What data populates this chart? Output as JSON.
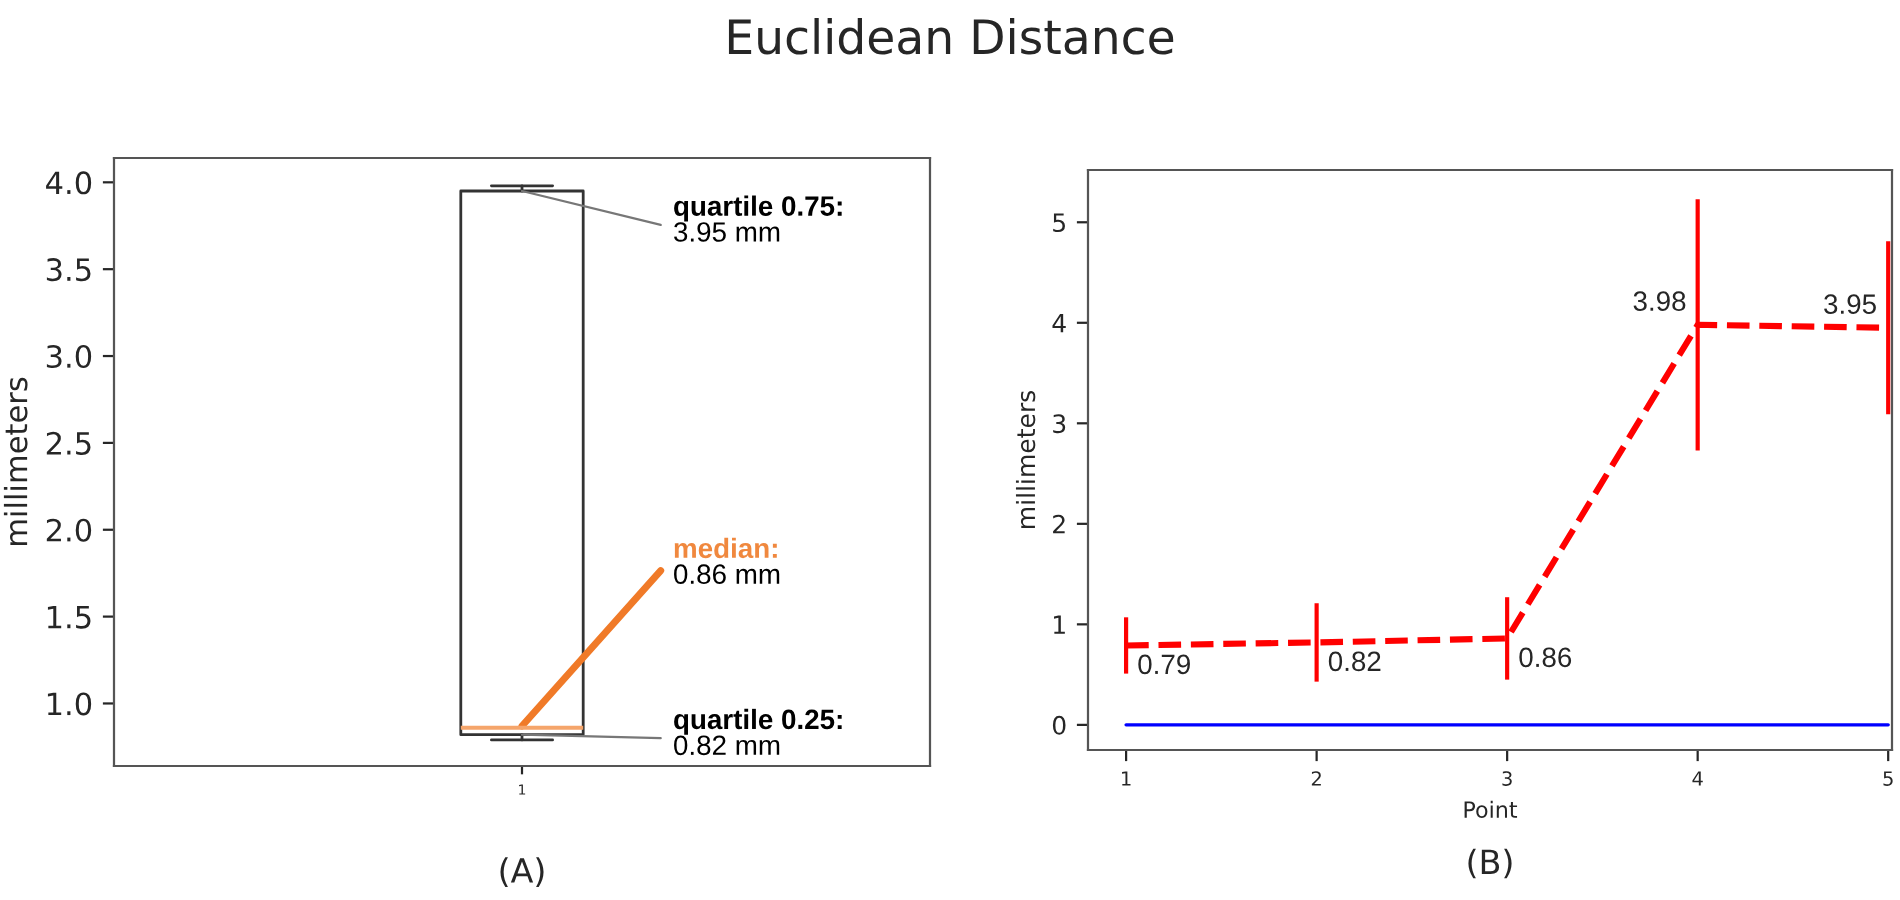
{
  "chart_data": [
    {
      "type": "box",
      "title": "Euclidean Distance",
      "ylabel": "millimeters",
      "categories": [
        "1"
      ],
      "boxes": [
        {
          "low": 0.79,
          "q1": 0.82,
          "median": 0.86,
          "q3": 3.95,
          "high": 3.98
        }
      ],
      "ylim": [
        0.64,
        4.14
      ],
      "yticks": [
        {
          "value": 1,
          "label": "1.0"
        },
        {
          "value": 1.5,
          "label": "1.5"
        },
        {
          "value": 2,
          "label": "2.0"
        },
        {
          "value": 2.5,
          "label": "2.5"
        },
        {
          "value": 3,
          "label": "3.0"
        },
        {
          "value": 3.5,
          "label": "3.5"
        },
        {
          "value": 4,
          "label": "4.0"
        }
      ],
      "grid": false,
      "legend": false,
      "annotations": [
        {
          "text": "quartile 0.75:\n3.95 mm",
          "x": "1",
          "y": 3.95
        },
        {
          "text": "median:\n0.86 mm",
          "x": "1",
          "y": 0.86
        },
        {
          "text": "quartile 0.25:\n0.82 mm",
          "x": "1",
          "y": 0.82
        },
        "(A)"
      ]
    },
    {
      "type": "line",
      "xlabel": "Point",
      "ylabel": "millimeters",
      "x": [
        1,
        2,
        3,
        4,
        5
      ],
      "series": [
        {
          "color": "#ff0000",
          "values": [
            0.79,
            0.82,
            0.86,
            3.98,
            3.95
          ],
          "errors": [
            0.28,
            0.39,
            0.41,
            1.25,
            0.86
          ],
          "value_labels": [
            "0.79",
            "0.82",
            "0.86",
            "3.98",
            "3.95"
          ],
          "line_style": "dashed"
        },
        {
          "color": "#0000ff",
          "values": [
            0,
            0,
            0,
            0,
            0
          ],
          "line_style": "solid"
        }
      ],
      "xlim": [
        0.8,
        5.02
      ],
      "xticks": [
        1,
        2,
        3,
        4,
        5
      ],
      "ylim": [
        -0.25,
        5.52
      ],
      "yticks": [
        0,
        1,
        2,
        3,
        4,
        5
      ],
      "grid": false,
      "legend": false,
      "marker": "none",
      "annotations": [
        "(B)"
      ]
    }
  ]
}
